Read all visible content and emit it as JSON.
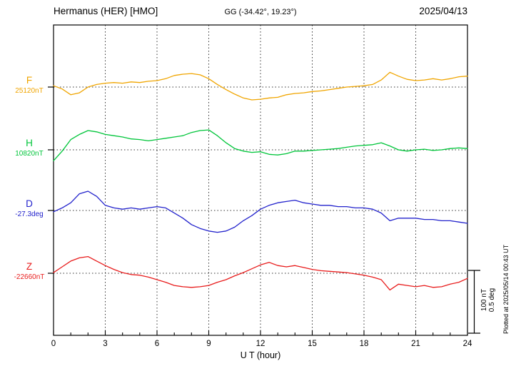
{
  "header": {
    "station": "Hermanus (HER)  [HMO]",
    "coords": "GG (-34.42°, 19.23°)",
    "date": "2025/04/13"
  },
  "x_axis": {
    "label": "U T (hour)",
    "ticks": [
      0,
      3,
      6,
      9,
      12,
      15,
      18,
      21,
      24
    ],
    "range": [
      0,
      24
    ]
  },
  "scale_bar": {
    "line1": "100 nT",
    "line2": "0.5 deg"
  },
  "plotted_note": "Plotted at 2025/05/14 00:43 UT",
  "chart_data": {
    "type": "line",
    "title": "Hermanus (HER) [HMO] magnetogram 2025/04/13",
    "xlabel": "U T (hour)",
    "x_hours_step": 0.5,
    "x_range": [
      0,
      24
    ],
    "grid": "dotted",
    "series": [
      {
        "name": "F",
        "unit": "nT",
        "baseline_label": "25120nT",
        "baseline_value": 25120,
        "color": "#f0a500",
        "values": [
          2,
          -3,
          -12,
          -9,
          0,
          4,
          6,
          7,
          6,
          8,
          7,
          9,
          10,
          13,
          18,
          20,
          21,
          19,
          13,
          4,
          -4,
          -11,
          -17,
          -20,
          -19,
          -17,
          -16,
          -12,
          -10,
          -9,
          -7,
          -6,
          -4,
          -2,
          0,
          1,
          2,
          4,
          11,
          23,
          17,
          12,
          10,
          11,
          13,
          11,
          13,
          16,
          17
        ]
      },
      {
        "name": "H",
        "unit": "nT",
        "baseline_label": "10820nT",
        "baseline_value": 10820,
        "color": "#00c53a",
        "values": [
          -17,
          -2,
          16,
          24,
          30,
          28,
          24,
          22,
          20,
          17,
          16,
          14,
          16,
          18,
          20,
          22,
          27,
          30,
          31,
          22,
          11,
          2,
          -2,
          -4,
          -3,
          -7,
          -8,
          -6,
          -2,
          -2,
          -1,
          0,
          1,
          2,
          4,
          6,
          7,
          8,
          11,
          6,
          0,
          -2,
          0,
          1,
          -1,
          0,
          2,
          3,
          2
        ]
      },
      {
        "name": "D",
        "unit": "deg",
        "baseline_label": "-27.3deg",
        "baseline_value": -27.3,
        "color": "#2222cc",
        "values": [
          -0.01,
          0.02,
          0.06,
          0.13,
          0.15,
          0.11,
          0.04,
          0.02,
          0.01,
          0.02,
          0.01,
          0.02,
          0.03,
          0.02,
          -0.02,
          -0.06,
          -0.11,
          -0.14,
          -0.16,
          -0.17,
          -0.16,
          -0.13,
          -0.08,
          -0.04,
          0.01,
          0.04,
          0.06,
          0.07,
          0.08,
          0.06,
          0.05,
          0.04,
          0.04,
          0.03,
          0.03,
          0.02,
          0.02,
          0.01,
          -0.02,
          -0.08,
          -0.06,
          -0.06,
          -0.06,
          -0.07,
          -0.07,
          -0.08,
          -0.08,
          -0.09,
          -0.1
        ]
      },
      {
        "name": "Z",
        "unit": "nT",
        "baseline_label": "-22660nT",
        "baseline_value": -22660,
        "color": "#e81c1c",
        "values": [
          1,
          10,
          19,
          24,
          26,
          19,
          12,
          6,
          1,
          -2,
          -3,
          -6,
          -10,
          -14,
          -19,
          -21,
          -22,
          -21,
          -19,
          -14,
          -10,
          -4,
          1,
          7,
          13,
          17,
          12,
          10,
          12,
          9,
          6,
          4,
          3,
          2,
          1,
          -1,
          -3,
          -6,
          -10,
          -26,
          -17,
          -19,
          -21,
          -19,
          -22,
          -21,
          -17,
          -14,
          -8
        ]
      }
    ]
  }
}
